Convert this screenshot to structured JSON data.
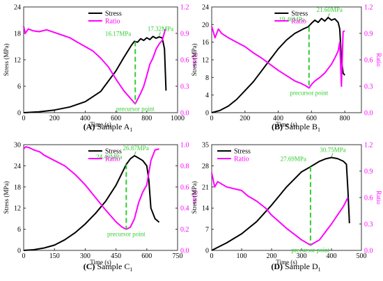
{
  "colors": {
    "stress": "#000000",
    "ratio": "#ff00ff",
    "marker": "#33cc33",
    "axis": "#333333"
  },
  "chart_data": [
    {
      "type": "line",
      "panel_letter": "(A)",
      "caption_text": "Sample A",
      "caption_sub": "1",
      "xlabel": "Time (s)",
      "ylabel": "Stress (MPa)",
      "y2label": "Ratio",
      "xlim": [
        0,
        1000
      ],
      "ylim": [
        0,
        24
      ],
      "y2lim": [
        0,
        1.2
      ],
      "xticks": [
        0,
        200,
        400,
        600,
        800,
        1000
      ],
      "yticks": [
        0,
        6,
        12,
        18,
        24
      ],
      "y2ticks": [
        0.0,
        0.3,
        0.6,
        0.9,
        1.2
      ],
      "legend": "top-center",
      "series": [
        {
          "name": "Stress",
          "axis": "left",
          "x": [
            0,
            100,
            200,
            300,
            400,
            500,
            600,
            650,
            700,
            720,
            740,
            760,
            780,
            800,
            820,
            840,
            860,
            880,
            900,
            915,
            925
          ],
          "y": [
            0,
            0.2,
            0.6,
            1.3,
            2.5,
            4.8,
            9.5,
            12.5,
            15.3,
            16.2,
            16.0,
            16.8,
            16.4,
            17.0,
            16.6,
            17.3,
            16.9,
            17.2,
            17.0,
            14.5,
            5.0
          ]
        },
        {
          "name": "Ratio",
          "axis": "right",
          "x": [
            0,
            10,
            30,
            60,
            100,
            150,
            200,
            250,
            300,
            350,
            400,
            450,
            500,
            550,
            600,
            650,
            700,
            725,
            740,
            760,
            780,
            800,
            820,
            840,
            860,
            880,
            900,
            910,
            920
          ],
          "y": [
            0.98,
            0.9,
            0.95,
            0.93,
            0.92,
            0.94,
            0.91,
            0.88,
            0.85,
            0.8,
            0.75,
            0.7,
            0.62,
            0.52,
            0.38,
            0.25,
            0.15,
            0.1,
            0.15,
            0.22,
            0.3,
            0.42,
            0.55,
            0.62,
            0.72,
            0.78,
            0.82,
            0.88,
            0.95
          ]
        }
      ],
      "annotations": [
        {
          "text": "16.17MPa",
          "x": 725,
          "y": 16.17
        },
        {
          "text": "17.32MPa",
          "x": 880,
          "y": 17.32
        }
      ],
      "precursor": {
        "label": "precursor point",
        "x": 725,
        "y_top": 16.17,
        "ratio": 0.1
      }
    },
    {
      "type": "line",
      "panel_letter": "(B)",
      "caption_text": "Sample B",
      "caption_sub": "1",
      "xlabel": "Time (s)",
      "ylabel": "Stress (MPa)",
      "y2label": "Ratio",
      "xlim": [
        0,
        900
      ],
      "ylim": [
        0,
        24
      ],
      "y2lim": [
        0,
        1.2
      ],
      "xticks": [
        0,
        200,
        400,
        600,
        800
      ],
      "yticks": [
        0,
        4,
        8,
        12,
        16,
        20,
        24
      ],
      "y2ticks": [
        0.0,
        0.3,
        0.6,
        0.9,
        1.2
      ],
      "legend": "top-center",
      "series": [
        {
          "name": "Stress",
          "axis": "left",
          "x": [
            0,
            50,
            100,
            150,
            200,
            250,
            300,
            350,
            400,
            450,
            500,
            550,
            580,
            600,
            620,
            640,
            660,
            680,
            700,
            720,
            740,
            760,
            770,
            780,
            790,
            800
          ],
          "y": [
            0,
            0.5,
            1.5,
            3.0,
            5.0,
            7.0,
            9.5,
            12.0,
            14.5,
            16.5,
            18.0,
            19.0,
            19.5,
            20.3,
            21.0,
            20.5,
            21.4,
            20.8,
            21.6,
            21.0,
            21.3,
            20.5,
            19.0,
            12.0,
            9.0,
            8.5
          ]
        },
        {
          "name": "Ratio",
          "axis": "right",
          "x": [
            0,
            20,
            40,
            60,
            100,
            150,
            200,
            250,
            300,
            350,
            400,
            450,
            500,
            540,
            570,
            585,
            600,
            620,
            650,
            680,
            700,
            720,
            740,
            760,
            770,
            780,
            790,
            800
          ],
          "y": [
            0.98,
            0.85,
            0.95,
            0.9,
            0.85,
            0.8,
            0.75,
            0.68,
            0.62,
            0.55,
            0.48,
            0.42,
            0.36,
            0.33,
            0.3,
            0.28,
            0.32,
            0.36,
            0.4,
            0.45,
            0.5,
            0.55,
            0.62,
            0.7,
            0.8,
            0.3,
            0.92,
            0.93
          ]
        }
      ],
      "annotations": [
        {
          "text": "19.46MPa",
          "x": 585,
          "y": 19.46
        },
        {
          "text": "21.60MPa",
          "x": 700,
          "y": 21.6
        }
      ],
      "precursor": {
        "label": "precursor point",
        "x": 585,
        "y_top": 19.46,
        "ratio": 0.28
      }
    },
    {
      "type": "line",
      "panel_letter": "(C)",
      "caption_text": "Sample C",
      "caption_sub": "1",
      "xlabel": "Time (s)",
      "ylabel": "Stress (MPa)",
      "y2label": "Ratio",
      "xlim": [
        0,
        750
      ],
      "ylim": [
        0,
        30
      ],
      "y2lim": [
        0,
        1.0
      ],
      "xticks": [
        0,
        150,
        300,
        450,
        600,
        750
      ],
      "yticks": [
        0,
        6,
        12,
        18,
        24,
        30
      ],
      "y2ticks": [
        0.0,
        0.2,
        0.4,
        0.6,
        0.8,
        1.0
      ],
      "legend": "top-center",
      "series": [
        {
          "name": "Stress",
          "axis": "left",
          "x": [
            0,
            50,
            100,
            150,
            200,
            250,
            300,
            350,
            400,
            450,
            500,
            520,
            540,
            560,
            580,
            600,
            610,
            620,
            640,
            660
          ],
          "y": [
            0,
            0.2,
            0.7,
            1.5,
            3.0,
            5.0,
            7.5,
            10.5,
            14.0,
            18.5,
            24.4,
            26.0,
            26.87,
            26.2,
            25.5,
            24.0,
            20.0,
            12.0,
            9.0,
            8.0
          ]
        },
        {
          "name": "Ratio",
          "axis": "right",
          "x": [
            0,
            10,
            30,
            50,
            80,
            100,
            150,
            200,
            250,
            300,
            350,
            400,
            450,
            480,
            500,
            520,
            540,
            560,
            580,
            600,
            620,
            640,
            660
          ],
          "y": [
            0.96,
            0.98,
            0.97,
            0.95,
            0.93,
            0.9,
            0.85,
            0.8,
            0.72,
            0.62,
            0.5,
            0.38,
            0.27,
            0.22,
            0.2,
            0.22,
            0.3,
            0.45,
            0.55,
            0.62,
            0.85,
            0.95,
            0.96
          ]
        }
      ],
      "annotations": [
        {
          "text": "24.40MPa",
          "x": 500,
          "y": 24.4
        },
        {
          "text": "26.87MPa",
          "x": 540,
          "y": 26.87
        }
      ],
      "precursor": {
        "label": "precursor point",
        "x": 500,
        "y_top": 24.4,
        "ratio": 0.2
      }
    },
    {
      "type": "line",
      "panel_letter": "(D)",
      "caption_text": "Sample D",
      "caption_sub": "1",
      "xlabel": "Time (s)",
      "ylabel": "Stress (MPa)",
      "y2label": "Ratio",
      "xlim": [
        0,
        500
      ],
      "ylim": [
        0,
        35
      ],
      "y2lim": [
        0,
        1.2
      ],
      "xticks": [
        0,
        100,
        200,
        300,
        400,
        500
      ],
      "yticks": [
        0,
        7,
        14,
        21,
        28,
        35
      ],
      "y2ticks": [
        0.0,
        0.3,
        0.6,
        0.9,
        1.2
      ],
      "legend": "top-left",
      "series": [
        {
          "name": "Stress",
          "axis": "left",
          "x": [
            0,
            50,
            100,
            150,
            200,
            250,
            300,
            330,
            360,
            380,
            400,
            420,
            440,
            450,
            455,
            460
          ],
          "y": [
            0,
            2.5,
            5.5,
            9.5,
            15.0,
            21.0,
            26.0,
            27.7,
            29.5,
            30.3,
            30.75,
            30.4,
            29.5,
            28.5,
            20.0,
            9.0
          ]
        },
        {
          "name": "Ratio",
          "axis": "right",
          "x": [
            0,
            10,
            20,
            50,
            100,
            120,
            150,
            180,
            200,
            250,
            300,
            330,
            360,
            400,
            420,
            440,
            455
          ],
          "y": [
            0.88,
            0.72,
            0.78,
            0.72,
            0.68,
            0.62,
            0.56,
            0.48,
            0.4,
            0.25,
            0.12,
            0.06,
            0.12,
            0.3,
            0.4,
            0.5,
            0.6
          ]
        }
      ],
      "annotations": [
        {
          "text": "27.69MPa",
          "x": 330,
          "y": 27.69
        },
        {
          "text": "30.75MPa",
          "x": 400,
          "y": 30.75
        }
      ],
      "precursor": {
        "label": "precursor point",
        "x": 330,
        "y_top": 27.69,
        "ratio": 0.06
      }
    }
  ]
}
